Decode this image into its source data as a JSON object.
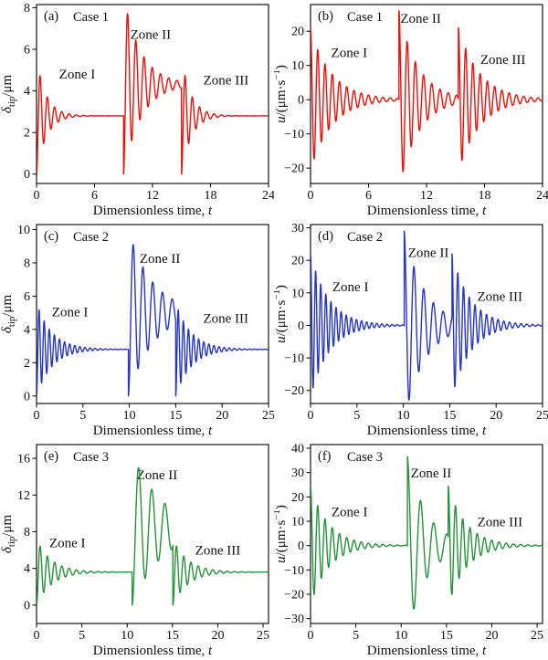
{
  "figure_title": "",
  "chart_data": [
    {
      "type": "line",
      "panel_label": "(a)",
      "case_label": "Case 1",
      "color": "#e8120d",
      "xlabel": "Dimensionless time, t",
      "xlabel_segments": [
        {
          "t": "Dimensionless time, "
        },
        {
          "t": "t",
          "italic": true
        }
      ],
      "ylabel": "δtip/μm",
      "ylabel_segments": [
        {
          "t": "δ",
          "italic": true
        },
        {
          "t": "tip",
          "sub": true
        },
        {
          "t": "/μm"
        }
      ],
      "xlim": [
        0,
        24
      ],
      "xticks": [
        0,
        6,
        12,
        18,
        24
      ],
      "ylim": [
        -0.45,
        8.15
      ],
      "yticks": [
        0,
        2,
        4,
        6,
        8
      ],
      "grid": false,
      "legend": "none",
      "annotations": [
        {
          "text": "Zone I",
          "x": 4.2,
          "y": 4.6
        },
        {
          "text": "Zone II",
          "x": 11.8,
          "y": 6.5
        },
        {
          "text": "Zone III",
          "x": 19.6,
          "y": 4.3
        }
      ],
      "series": [
        {
          "name": "tip displacement",
          "kind": "displacement",
          "zones": [
            {
              "zone": "I",
              "t_start": 0,
              "t_end": 9,
              "baseline": 2.8,
              "amplitude": 2.8,
              "decay_rate": 1.0,
              "period": 0.75,
              "start_value": 0,
              "first_peak": 4.7
            },
            {
              "zone": "II",
              "t_start": 9,
              "t_end": 15,
              "baseline": 4.3,
              "amplitude": 4.3,
              "decay_rate": 0.55,
              "period": 0.85,
              "start_value": 0,
              "first_peak": 7.7
            },
            {
              "zone": "III",
              "t_start": 15,
              "t_end": 24,
              "baseline": 2.8,
              "amplitude": 2.8,
              "decay_rate": 1.0,
              "period": 0.75,
              "start_value": 0,
              "first_peak": 4.7
            }
          ]
        }
      ]
    },
    {
      "type": "line",
      "panel_label": "(b)",
      "case_label": "Case 1",
      "color": "#e8120d",
      "xlabel": "Dimensionless time, t",
      "xlabel_segments": [
        {
          "t": "Dimensionless time, "
        },
        {
          "t": "t",
          "italic": true
        }
      ],
      "ylabel": "u/(μm·s−1)",
      "ylabel_segments": [
        {
          "t": "u",
          "italic": true
        },
        {
          "t": "/(μm·s"
        },
        {
          "t": "−1",
          "sup": true
        },
        {
          "t": ")"
        }
      ],
      "xlim": [
        0,
        24
      ],
      "xticks": [
        0,
        6,
        12,
        18,
        24
      ],
      "ylim": [
        -24.5,
        27.8
      ],
      "yticks": [
        -20,
        -10,
        0,
        10,
        20
      ],
      "grid": false,
      "legend": "none",
      "annotations": [
        {
          "text": "Zone I",
          "x": 4.0,
          "y": 12.5
        },
        {
          "text": "Zone II",
          "x": 11.4,
          "y": 22.5
        },
        {
          "text": "Zone III",
          "x": 19.9,
          "y": 10.5
        }
      ],
      "series": [
        {
          "name": "tip velocity",
          "kind": "velocity",
          "zones": [
            {
              "zone": "I",
              "t_start": 0,
              "t_end": 9.15,
              "baseline": 0,
              "amplitude": 20.5,
              "decay_rate": 0.45,
              "period": 0.75,
              "first_peak": 20.5,
              "first_valley": -17.5
            },
            {
              "zone": "II",
              "t_start": 9.15,
              "t_end": 15.3,
              "baseline": 0,
              "amplitude": 26,
              "decay_rate": 0.5,
              "period": 0.85,
              "first_peak": 26,
              "first_valley": -21
            },
            {
              "zone": "III",
              "t_start": 15.3,
              "t_end": 24,
              "baseline": 0,
              "amplitude": 21,
              "decay_rate": 0.45,
              "period": 0.75,
              "first_peak": 21,
              "first_valley": -17.5
            }
          ]
        }
      ]
    },
    {
      "type": "line",
      "panel_label": "(c)",
      "case_label": "Case 2",
      "color": "#2736c0",
      "xlabel": "Dimensionless time, t",
      "xlabel_segments": [
        {
          "t": "Dimensionless time, "
        },
        {
          "t": "t",
          "italic": true
        }
      ],
      "ylabel": "δtip/μm",
      "ylabel_segments": [
        {
          "t": "δ",
          "italic": true
        },
        {
          "t": "tip",
          "sub": true
        },
        {
          "t": "/μm"
        }
      ],
      "xlim": [
        0,
        25
      ],
      "xticks": [
        0,
        5,
        10,
        15,
        20,
        25
      ],
      "ylim": [
        -0.45,
        10.3
      ],
      "yticks": [
        0,
        2,
        4,
        6,
        8,
        10
      ],
      "grid": false,
      "legend": "none",
      "annotations": [
        {
          "text": "Zone I",
          "x": 3.6,
          "y": 4.8
        },
        {
          "text": "Zone II",
          "x": 13.3,
          "y": 8.0
        },
        {
          "text": "Zone III",
          "x": 20.4,
          "y": 4.4
        }
      ],
      "series": [
        {
          "name": "tip displacement",
          "kind": "displacement",
          "zones": [
            {
              "zone": "I",
              "t_start": 0,
              "t_end": 9.9,
              "baseline": 2.8,
              "amplitude": 2.8,
              "decay_rate": 0.6,
              "period": 0.55,
              "start_value": 0,
              "first_peak": 5.4
            },
            {
              "zone": "II",
              "t_start": 9.9,
              "t_end": 15,
              "baseline": 5.0,
              "amplitude": 5.0,
              "decay_rate": 0.38,
              "period": 1.05,
              "start_value": 0,
              "first_peak": 9.6
            },
            {
              "zone": "III",
              "t_start": 15,
              "t_end": 25,
              "baseline": 2.8,
              "amplitude": 2.8,
              "decay_rate": 0.6,
              "period": 0.55,
              "start_value": 0,
              "first_peak": 5.4
            }
          ]
        }
      ]
    },
    {
      "type": "line",
      "panel_label": "(d)",
      "case_label": "Case 2",
      "color": "#2736c0",
      "xlabel": "Dimensionless time, t",
      "xlabel_segments": [
        {
          "t": "Dimensionless time, "
        },
        {
          "t": "t",
          "italic": true
        }
      ],
      "ylabel": "u/(μm·s−1)",
      "ylabel_segments": [
        {
          "t": "u",
          "italic": true
        },
        {
          "t": "/(μm·s"
        },
        {
          "t": "−1",
          "sup": true
        },
        {
          "t": ")"
        }
      ],
      "xlim": [
        0,
        25
      ],
      "xticks": [
        0,
        5,
        10,
        15,
        20,
        25
      ],
      "ylim": [
        -24,
        31
      ],
      "yticks": [
        -20,
        -10,
        0,
        10,
        20,
        30
      ],
      "grid": false,
      "legend": "none",
      "annotations": [
        {
          "text": "Zone I",
          "x": 4.3,
          "y": 10.5
        },
        {
          "text": "Zone II",
          "x": 12.7,
          "y": 21
        },
        {
          "text": "Zone III",
          "x": 20.4,
          "y": 7.5
        }
      ],
      "series": [
        {
          "name": "tip velocity",
          "kind": "velocity",
          "zones": [
            {
              "zone": "I",
              "t_start": 0,
              "t_end": 10.1,
              "baseline": 0,
              "amplitude": 22,
              "decay_rate": 0.5,
              "period": 0.55,
              "first_peak": 22,
              "first_valley": -18.5
            },
            {
              "zone": "II",
              "t_start": 10.1,
              "t_end": 15.25,
              "baseline": 0,
              "amplitude": 29,
              "decay_rate": 0.45,
              "period": 1.05,
              "first_peak": 29,
              "first_valley": -22.5
            },
            {
              "zone": "III",
              "t_start": 15.25,
              "t_end": 25,
              "baseline": 0,
              "amplitude": 22,
              "decay_rate": 0.5,
              "period": 0.62,
              "first_peak": 22,
              "first_valley": -18.5
            }
          ]
        }
      ]
    },
    {
      "type": "line",
      "panel_label": "(e)",
      "case_label": "Case 3",
      "color": "#28913c",
      "xlabel": "Dimensionless time, t",
      "xlabel_segments": [
        {
          "t": "Dimensionless time, "
        },
        {
          "t": "t",
          "italic": true
        }
      ],
      "ylabel": "δtip/μm",
      "ylabel_segments": [
        {
          "t": "δ",
          "italic": true
        },
        {
          "t": "tip",
          "sub": true
        },
        {
          "t": "/μm"
        }
      ],
      "xlim": [
        0,
        25.6
      ],
      "xticks": [
        0,
        5,
        10,
        15,
        20,
        25
      ],
      "ylim": [
        -2,
        17.5
      ],
      "yticks": [
        0,
        4,
        8,
        12,
        16
      ],
      "grid": false,
      "legend": "none",
      "annotations": [
        {
          "text": "Zone I",
          "x": 3.4,
          "y": 6.3
        },
        {
          "text": "Zone II",
          "x": 13.3,
          "y": 13.7
        },
        {
          "text": "Zone III",
          "x": 20.0,
          "y": 5.5
        }
      ],
      "series": [
        {
          "name": "tip displacement",
          "kind": "displacement",
          "zones": [
            {
              "zone": "I",
              "t_start": 0,
              "t_end": 10.55,
              "baseline": 3.6,
              "amplitude": 3.6,
              "decay_rate": 0.6,
              "period": 0.8,
              "start_value": 0,
              "first_peak": 6.7
            },
            {
              "zone": "II",
              "t_start": 10.55,
              "t_end": 15.05,
              "baseline": 8.3,
              "amplitude": 8.3,
              "decay_rate": 0.3,
              "period": 1.45,
              "start_value": 0,
              "first_peak": 15.6
            },
            {
              "zone": "III",
              "t_start": 15.05,
              "t_end": 25.6,
              "baseline": 3.6,
              "amplitude": 3.6,
              "decay_rate": 0.6,
              "period": 0.8,
              "start_value": 0,
              "first_peak": 6.6
            }
          ]
        }
      ]
    },
    {
      "type": "line",
      "panel_label": "(f)",
      "case_label": "Case 3",
      "color": "#28913c",
      "xlabel": "Dimensionless time, t",
      "xlabel_segments": [
        {
          "t": "Dimensionless time, "
        },
        {
          "t": "t",
          "italic": true
        }
      ],
      "ylabel": "u/(μm·s−1)",
      "ylabel_segments": [
        {
          "t": "u",
          "italic": true
        },
        {
          "t": "/(μm·s"
        },
        {
          "t": "−1",
          "sup": true
        },
        {
          "t": ")"
        }
      ],
      "xlim": [
        0,
        25.6
      ],
      "xticks": [
        0,
        5,
        10,
        15,
        20,
        25
      ],
      "ylim": [
        -32,
        41.5
      ],
      "yticks": [
        -30,
        -20,
        -10,
        0,
        10,
        20,
        30,
        40
      ],
      "grid": false,
      "legend": "none",
      "annotations": [
        {
          "text": "Zone I",
          "x": 4.3,
          "y": 12
        },
        {
          "text": "Zone II",
          "x": 13.3,
          "y": 28
        },
        {
          "text": "Zone III",
          "x": 20.9,
          "y": 8
        }
      ],
      "series": [
        {
          "name": "tip velocity",
          "kind": "velocity",
          "zones": [
            {
              "zone": "I",
              "t_start": 0,
              "t_end": 10.7,
              "baseline": 0,
              "amplitude": 24.5,
              "decay_rate": 0.5,
              "period": 0.8,
              "first_peak": 24.5,
              "first_valley": -20
            },
            {
              "zone": "II",
              "t_start": 10.7,
              "t_end": 15.2,
              "baseline": 0,
              "amplitude": 36.5,
              "decay_rate": 0.47,
              "period": 1.45,
              "first_peak": 36.5,
              "first_valley": -26
            },
            {
              "zone": "III",
              "t_start": 15.2,
              "t_end": 25.6,
              "baseline": 0,
              "amplitude": 24.5,
              "decay_rate": 0.5,
              "period": 0.8,
              "first_peak": 24.5,
              "first_valley": -19.5
            }
          ]
        }
      ]
    }
  ]
}
